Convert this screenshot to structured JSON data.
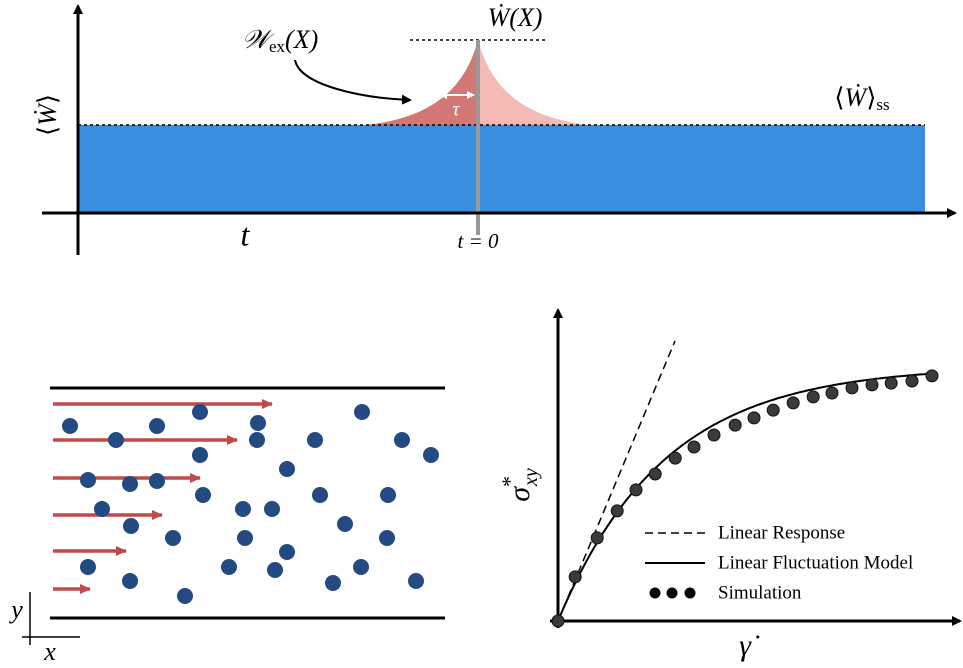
{
  "top_panel": {
    "y_label": {
      "open": "⟨",
      "symbol": "Ẇ",
      "close": "⟩"
    },
    "x_label": "t",
    "origin_label": "t = 0",
    "excess_label": {
      "symbol": "𝒲",
      "sub": "ex",
      "arg": "(X)"
    },
    "peak_label": {
      "symbol": "Ẇ",
      "arg": "(X)"
    },
    "steady_label": {
      "open": "⟨",
      "symbol": "Ẇ",
      "close": "⟩",
      "sub": "ss"
    },
    "tau_label": "τ"
  },
  "flow_panel": {
    "y_axis_label": "y",
    "x_axis_label": "x"
  },
  "chart_data": {
    "type": "scatter",
    "y_label": {
      "symbol": "σ",
      "sup": "*",
      "sub": "xy"
    },
    "x_label": "γ̇",
    "xlim": [
      0,
      1
    ],
    "ylim": [
      0,
      1
    ],
    "legend": [
      "Linear Response",
      "Linear Fluctuation Model"
    ],
    "series": [
      {
        "name": "Simulation",
        "color": "#3a3a3a",
        "x": [
          0,
          0.043,
          0.098,
          0.148,
          0.195,
          0.243,
          0.293,
          0.34,
          0.39,
          0.443,
          0.49,
          0.538,
          0.588,
          0.638,
          0.685,
          0.735,
          0.785,
          0.833,
          0.885,
          0.935
        ],
        "values": [
          0,
          0.147,
          0.277,
          0.367,
          0.437,
          0.49,
          0.543,
          0.58,
          0.62,
          0.653,
          0.677,
          0.703,
          0.727,
          0.747,
          0.76,
          0.777,
          0.787,
          0.793,
          0.8,
          0.817
        ]
      }
    ]
  }
}
